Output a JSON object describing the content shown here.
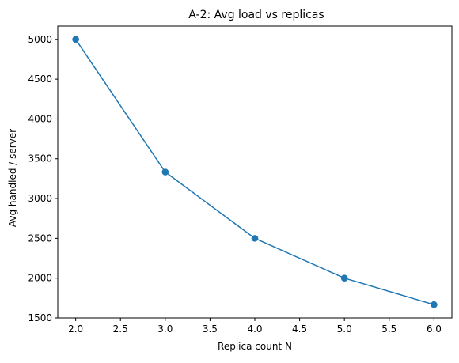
{
  "chart_data": {
    "type": "line",
    "title": "A-2: Avg load vs replicas",
    "xlabel": "Replica count N",
    "ylabel": "Avg handled / server",
    "x": [
      2,
      3,
      4,
      5,
      6
    ],
    "series": [
      {
        "values": [
          5000,
          3333.33,
          2500,
          2000,
          1666.67
        ],
        "color": "#1f77b4",
        "marker": "circle"
      }
    ],
    "xlim": [
      1.8,
      6.2
    ],
    "ylim": [
      1500,
      5167
    ],
    "xticks": [
      2.0,
      2.5,
      3.0,
      3.5,
      4.0,
      4.5,
      5.0,
      5.5,
      6.0
    ],
    "xtick_labels": [
      "2.0",
      "2.5",
      "3.0",
      "3.5",
      "4.0",
      "4.5",
      "5.0",
      "5.5",
      "6.0"
    ],
    "yticks": [
      1500,
      2000,
      2500,
      3000,
      3500,
      4000,
      4500,
      5000
    ],
    "ytick_labels": [
      "1500",
      "2000",
      "2500",
      "3000",
      "3500",
      "4000",
      "4500",
      "5000"
    ],
    "grid": false,
    "legend": "none"
  }
}
